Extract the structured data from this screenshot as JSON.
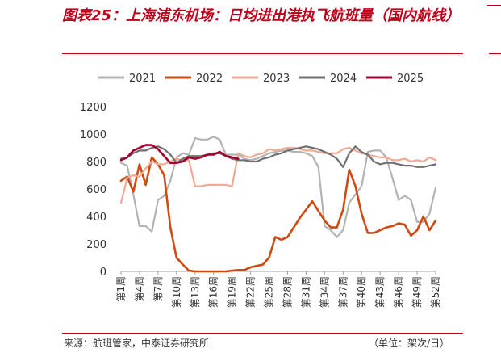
{
  "figure": {
    "title": "图表25：上海浦东机场：日均进出港执飞航班量（国内航线）",
    "source": "来源：航班管家，中泰证券研究所",
    "unit": "（单位：架次/日）"
  },
  "chart_data": {
    "type": "line",
    "xlabel": "",
    "ylabel": "",
    "ylim": [
      0,
      1200
    ],
    "yticks": [
      0,
      200,
      400,
      600,
      800,
      1000,
      1200
    ],
    "xticks": [
      "第1周",
      "第4周",
      "第7周",
      "第10周",
      "第13周",
      "第16周",
      "第19周",
      "第22周",
      "第25周",
      "第28周",
      "第31周",
      "第34周",
      "第37周",
      "第40周",
      "第43周",
      "第46周",
      "第49周",
      "第52周"
    ],
    "legend_position": "top",
    "grid": false,
    "series": [
      {
        "name": "2021",
        "color": "#b3b3b3",
        "x": [
          1,
          2,
          3,
          4,
          5,
          6,
          7,
          8,
          9,
          10,
          11,
          12,
          13,
          14,
          15,
          16,
          17,
          18,
          19,
          20,
          21,
          22,
          23,
          24,
          25,
          26,
          27,
          28,
          29,
          30,
          31,
          32,
          33,
          34,
          35,
          36,
          37,
          38,
          39,
          40,
          41,
          42,
          43,
          44,
          45,
          46,
          47,
          48,
          49,
          50,
          51,
          52
        ],
        "y": [
          790,
          770,
          560,
          330,
          330,
          290,
          520,
          550,
          660,
          830,
          860,
          850,
          970,
          960,
          960,
          980,
          960,
          850,
          850,
          850,
          820,
          810,
          820,
          840,
          860,
          870,
          880,
          880,
          870,
          870,
          860,
          840,
          760,
          330,
          300,
          250,
          300,
          500,
          560,
          620,
          870,
          880,
          880,
          830,
          680,
          520,
          550,
          520,
          360,
          360,
          420,
          610
        ]
      },
      {
        "name": "2022",
        "color": "#d04a10",
        "x": [
          1,
          2,
          3,
          4,
          5,
          6,
          7,
          8,
          9,
          10,
          11,
          12,
          13,
          14,
          15,
          16,
          17,
          18,
          19,
          20,
          21,
          22,
          23,
          24,
          25,
          26,
          27,
          28,
          29,
          30,
          31,
          32,
          33,
          34,
          35,
          36,
          37,
          38,
          39,
          40,
          41,
          42,
          43,
          44,
          45,
          46,
          47,
          48,
          49,
          50,
          51,
          52
        ],
        "y": [
          660,
          690,
          580,
          780,
          630,
          830,
          780,
          700,
          320,
          100,
          50,
          5,
          0,
          0,
          0,
          0,
          0,
          0,
          5,
          10,
          10,
          30,
          40,
          50,
          100,
          250,
          230,
          250,
          320,
          390,
          450,
          510,
          440,
          370,
          320,
          320,
          450,
          740,
          620,
          420,
          280,
          280,
          300,
          320,
          330,
          350,
          340,
          260,
          300,
          400,
          300,
          370
        ]
      },
      {
        "name": "2023",
        "color": "#f2a892",
        "x": [
          1,
          2,
          3,
          4,
          5,
          6,
          7,
          8,
          9,
          10,
          11,
          12,
          13,
          14,
          15,
          16,
          17,
          18,
          19,
          20,
          21,
          22,
          23,
          24,
          25,
          26,
          27,
          28,
          29,
          30,
          31,
          32,
          33,
          34,
          35,
          36,
          37,
          38,
          39,
          40,
          41,
          42,
          43,
          44,
          45,
          46,
          47,
          48,
          49,
          50,
          51,
          52
        ],
        "y": [
          500,
          680,
          700,
          690,
          750,
          800,
          780,
          780,
          800,
          820,
          810,
          810,
          620,
          620,
          630,
          630,
          630,
          630,
          620,
          860,
          840,
          830,
          850,
          860,
          890,
          880,
          890,
          900,
          900,
          890,
          880,
          880,
          870,
          860,
          860,
          860,
          890,
          900,
          880,
          860,
          850,
          840,
          830,
          830,
          810,
          810,
          820,
          800,
          810,
          800,
          830,
          810
        ]
      },
      {
        "name": "2024",
        "color": "#707070",
        "x": [
          1,
          2,
          3,
          4,
          5,
          6,
          7,
          8,
          9,
          10,
          11,
          12,
          13,
          14,
          15,
          16,
          17,
          18,
          19,
          20,
          21,
          22,
          23,
          24,
          25,
          26,
          27,
          28,
          29,
          30,
          31,
          32,
          33,
          34,
          35,
          36,
          37,
          38,
          39,
          40,
          41,
          42,
          43,
          44,
          45,
          46,
          47,
          48,
          49,
          50,
          51,
          52
        ],
        "y": [
          820,
          830,
          860,
          880,
          880,
          900,
          910,
          890,
          850,
          790,
          820,
          840,
          840,
          840,
          850,
          860,
          860,
          840,
          820,
          810,
          810,
          800,
          800,
          820,
          830,
          850,
          860,
          880,
          890,
          900,
          910,
          900,
          890,
          870,
          850,
          820,
          760,
          860,
          910,
          870,
          850,
          800,
          780,
          790,
          790,
          780,
          770,
          770,
          760,
          760,
          770,
          780
        ]
      },
      {
        "name": "2025",
        "color": "#a3002b",
        "x": [
          1,
          2,
          3,
          4,
          5,
          6,
          7,
          8,
          9,
          10,
          11,
          12,
          13,
          14,
          15,
          16,
          17,
          18,
          19,
          20
        ],
        "y": [
          810,
          830,
          880,
          900,
          920,
          920,
          890,
          840,
          790,
          790,
          800,
          830,
          820,
          830,
          850,
          850,
          870,
          840,
          830,
          820
        ]
      }
    ]
  }
}
